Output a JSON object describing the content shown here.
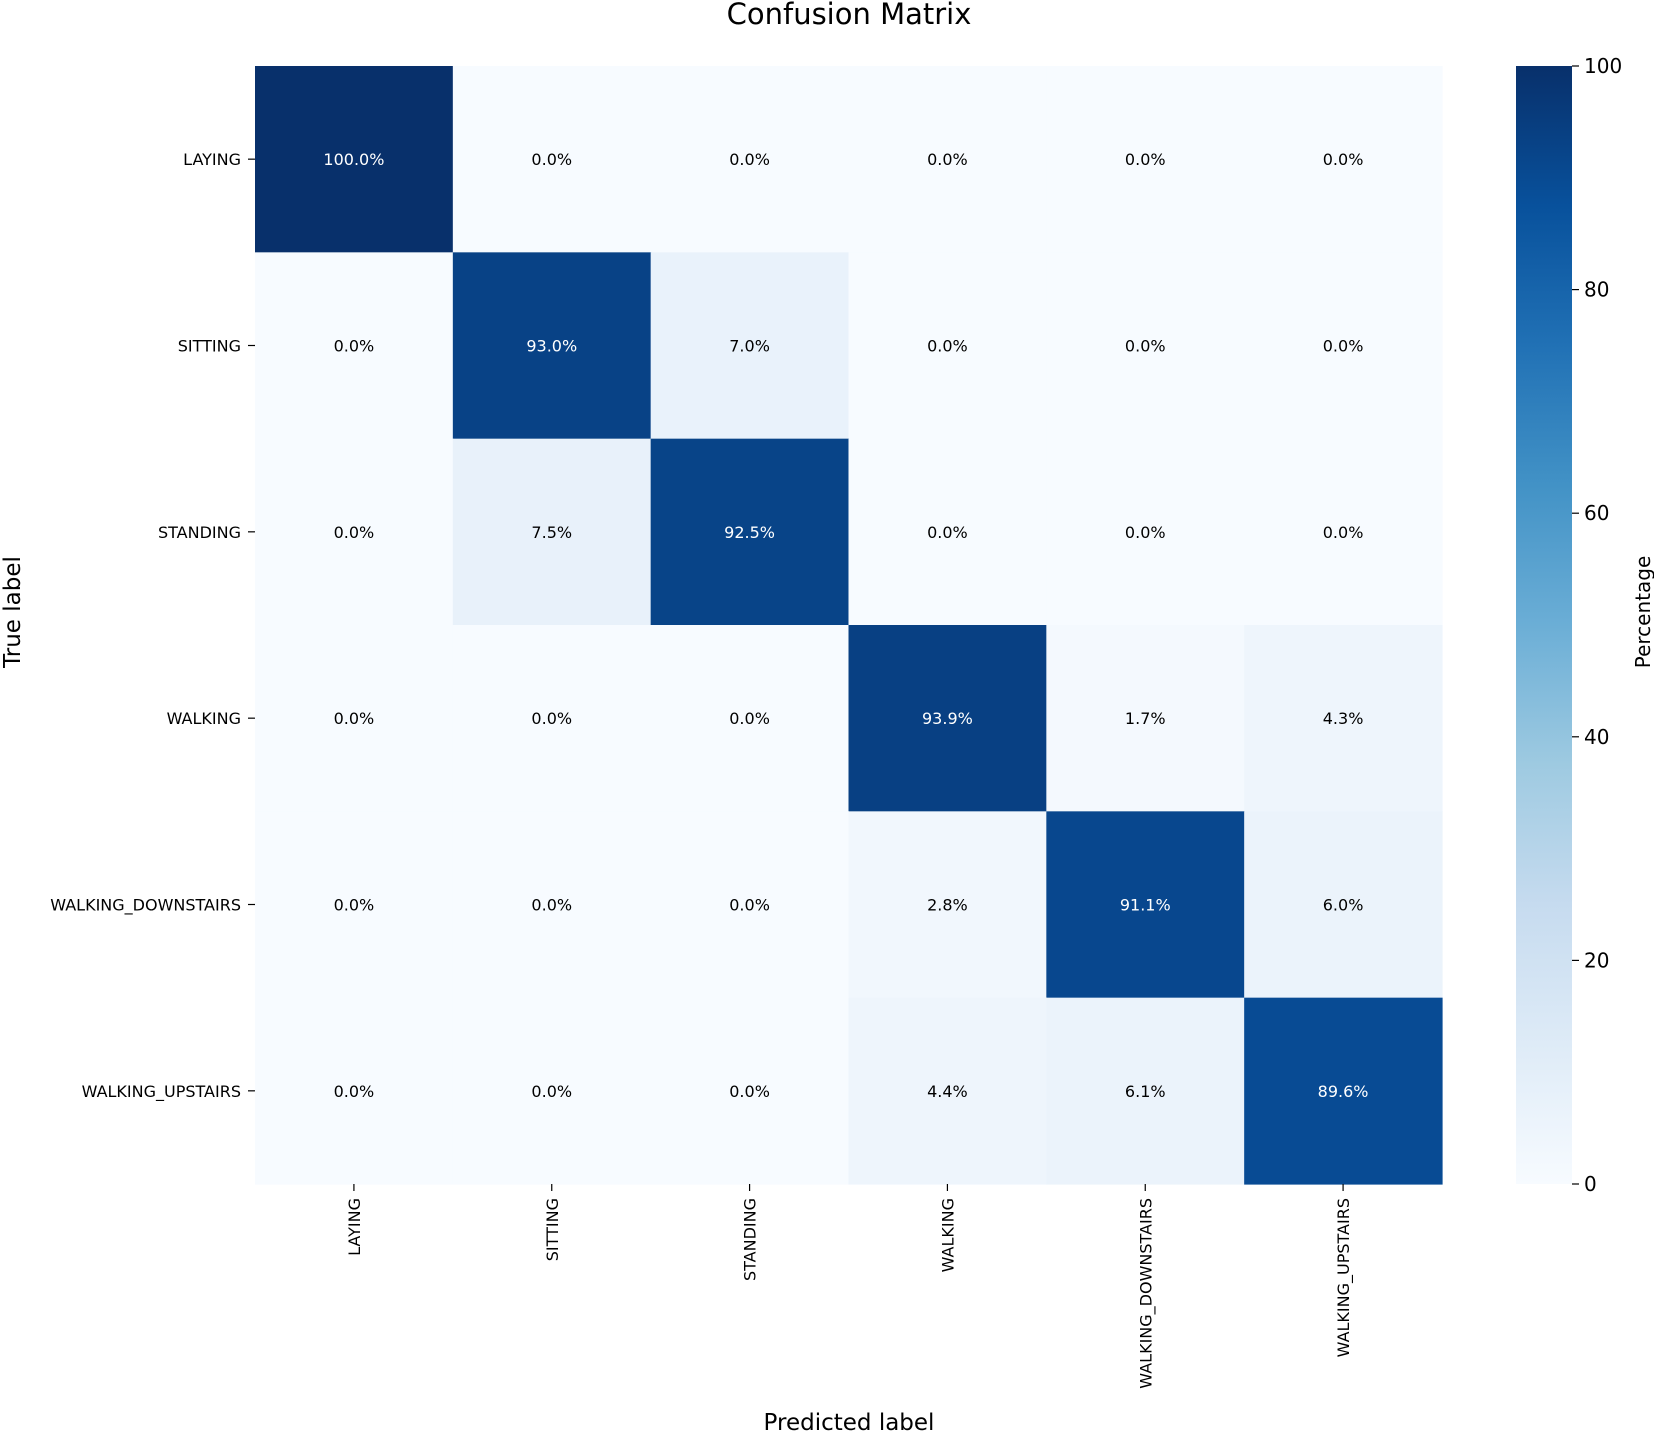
{
  "chart_data": {
    "type": "heatmap",
    "title": "Confusion Matrix",
    "xlabel": "Predicted label",
    "ylabel": "True label",
    "x_categories": [
      "LAYING",
      "SITTING",
      "STANDING",
      "WALKING",
      "WALKING_DOWNSTAIRS",
      "WALKING_UPSTAIRS"
    ],
    "y_categories": [
      "LAYING",
      "SITTING",
      "STANDING",
      "WALKING",
      "WALKING_DOWNSTAIRS",
      "WALKING_UPSTAIRS"
    ],
    "values": [
      [
        100.0,
        0.0,
        0.0,
        0.0,
        0.0,
        0.0
      ],
      [
        0.0,
        93.0,
        7.0,
        0.0,
        0.0,
        0.0
      ],
      [
        0.0,
        7.5,
        92.5,
        0.0,
        0.0,
        0.0
      ],
      [
        0.0,
        0.0,
        0.0,
        93.9,
        1.7,
        4.3
      ],
      [
        0.0,
        0.0,
        0.0,
        2.8,
        91.1,
        6.0
      ],
      [
        0.0,
        0.0,
        0.0,
        4.4,
        6.1,
        89.6
      ]
    ],
    "annotations": [
      [
        "100.0%",
        "0.0%",
        "0.0%",
        "0.0%",
        "0.0%",
        "0.0%"
      ],
      [
        "0.0%",
        "93.0%",
        "7.0%",
        "0.0%",
        "0.0%",
        "0.0%"
      ],
      [
        "0.0%",
        "7.5%",
        "92.5%",
        "0.0%",
        "0.0%",
        "0.0%"
      ],
      [
        "0.0%",
        "0.0%",
        "0.0%",
        "93.9%",
        "1.7%",
        "4.3%"
      ],
      [
        "0.0%",
        "0.0%",
        "0.0%",
        "2.8%",
        "91.1%",
        "6.0%"
      ],
      [
        "0.0%",
        "0.0%",
        "0.0%",
        "4.4%",
        "6.1%",
        "89.6%"
      ]
    ],
    "colorbar": {
      "label": "Percentage",
      "range": [
        0,
        100
      ],
      "ticks": [
        "0",
        "20",
        "40",
        "60",
        "80",
        "100"
      ],
      "colormap": "Blues"
    }
  }
}
